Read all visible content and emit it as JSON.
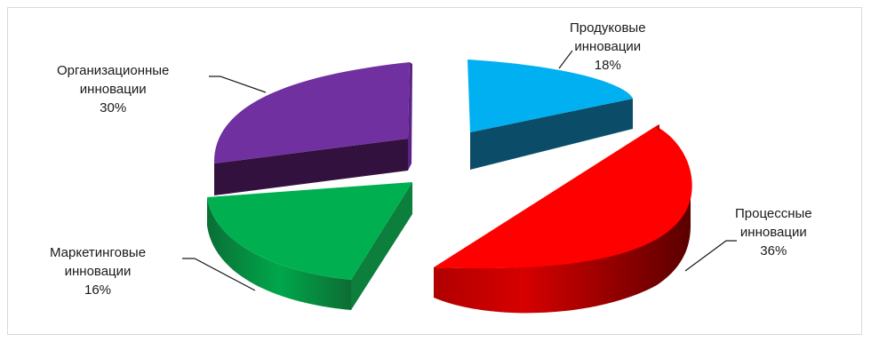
{
  "chart_data": {
    "type": "pie",
    "title": "",
    "slices": [
      {
        "name": "Продуковые инновации",
        "line1": "Продуковые",
        "line2": "инновации",
        "pct": "18%",
        "value": 18,
        "color": "#00b0f0"
      },
      {
        "name": "Процессные инновации",
        "line1": "Процессные",
        "line2": "инновации",
        "pct": "36%",
        "value": 36,
        "color": "#ff0000"
      },
      {
        "name": "Маркетинговые инновации",
        "line1": "Маркетинговые",
        "line2": "инновации",
        "pct": "16%",
        "value": 16,
        "color": "#00b050"
      },
      {
        "name": "Организационные инновации",
        "line1": "Организационные",
        "line2": "инновации",
        "pct": "30%",
        "value": 30,
        "color": "#7030a0"
      }
    ]
  }
}
